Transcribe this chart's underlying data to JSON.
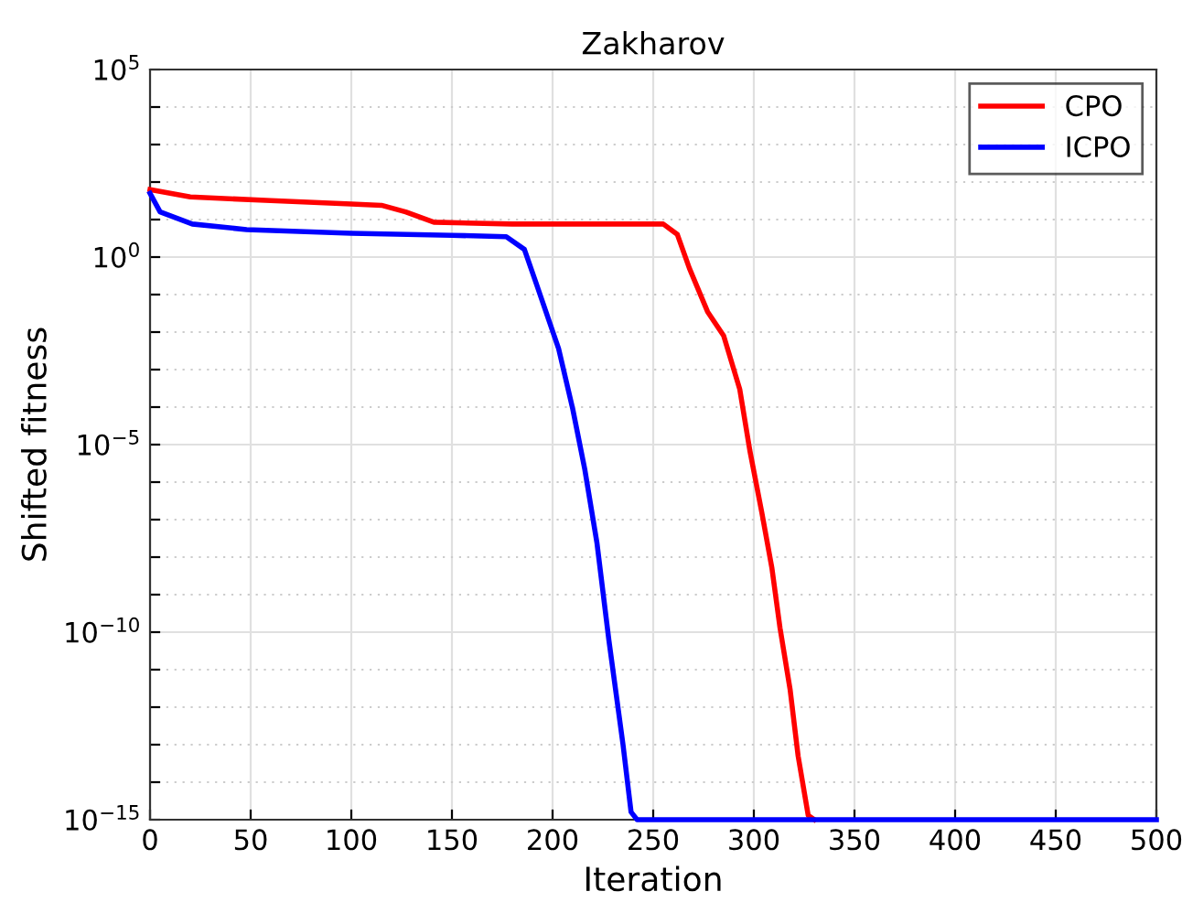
{
  "chart_data": {
    "type": "line",
    "title": "Zakharov",
    "xlabel": "Iteration",
    "ylabel": "Shifted fitness",
    "log": "y",
    "xlim": [
      0,
      500
    ],
    "xticks": [
      0,
      50,
      100,
      150,
      200,
      250,
      300,
      350,
      400,
      450,
      500
    ],
    "ylim": [
      1e-15,
      100000.0
    ],
    "yticks": [
      {
        "value": 1e-15,
        "label": "10$^{−15}$"
      },
      {
        "value": 1e-14,
        "label": null
      },
      {
        "value": 1e-13,
        "label": null
      },
      {
        "value": 1e-12,
        "label": null
      },
      {
        "value": 1e-11,
        "label": null
      },
      {
        "value": 1e-10,
        "label": "10$^{−10}$"
      },
      {
        "value": 1e-09,
        "label": null
      },
      {
        "value": 1e-08,
        "label": null
      },
      {
        "value": 1e-07,
        "label": null
      },
      {
        "value": 1e-06,
        "label": null
      },
      {
        "value": 1e-05,
        "label": "10$^{−5}$"
      },
      {
        "value": 0.0001,
        "label": null
      },
      {
        "value": 0.001,
        "label": null
      },
      {
        "value": 0.01,
        "label": null
      },
      {
        "value": 0.1,
        "label": null
      },
      {
        "value": 1,
        "label": "10$^{0}$"
      },
      {
        "value": 10,
        "label": null
      },
      {
        "value": 100,
        "label": null
      },
      {
        "value": 1000,
        "label": null
      },
      {
        "value": 10000,
        "label": null
      },
      {
        "value": 100000.0,
        "label": "10$^{5}$"
      }
    ],
    "grid": true,
    "legend": "top right",
    "line_style": "solid",
    "marker": "none",
    "series": [
      {
        "name": "CPO",
        "color": "#ff0000",
        "x": [
          0,
          20,
          60,
          100,
          115,
          127,
          141,
          180,
          255,
          262,
          268,
          277,
          285,
          293,
          298,
          304,
          309,
          313,
          318,
          322,
          327,
          330
        ],
        "values": [
          63,
          40,
          32,
          26,
          24,
          16,
          8.5,
          7.6,
          7.6,
          4,
          0.5,
          0.035,
          0.008,
          0.0003,
          7e-06,
          1.5e-07,
          5e-09,
          1.3e-10,
          3e-12,
          5e-14,
          1.3e-15,
          1e-15
        ]
      },
      {
        "name": "ICPO",
        "color": "#0000ff",
        "x": [
          0,
          5,
          21,
          48,
          100,
          150,
          177,
          186,
          192,
          203,
          210,
          216,
          222,
          228,
          235,
          239,
          242,
          500
        ],
        "values": [
          50,
          16,
          7.6,
          5.4,
          4.3,
          3.8,
          3.5,
          1.6,
          0.19,
          0.0036,
          9e-05,
          2.2e-06,
          2.5e-08,
          6e-11,
          1e-13,
          1.6e-15,
          1e-15,
          1e-15
        ]
      }
    ]
  }
}
